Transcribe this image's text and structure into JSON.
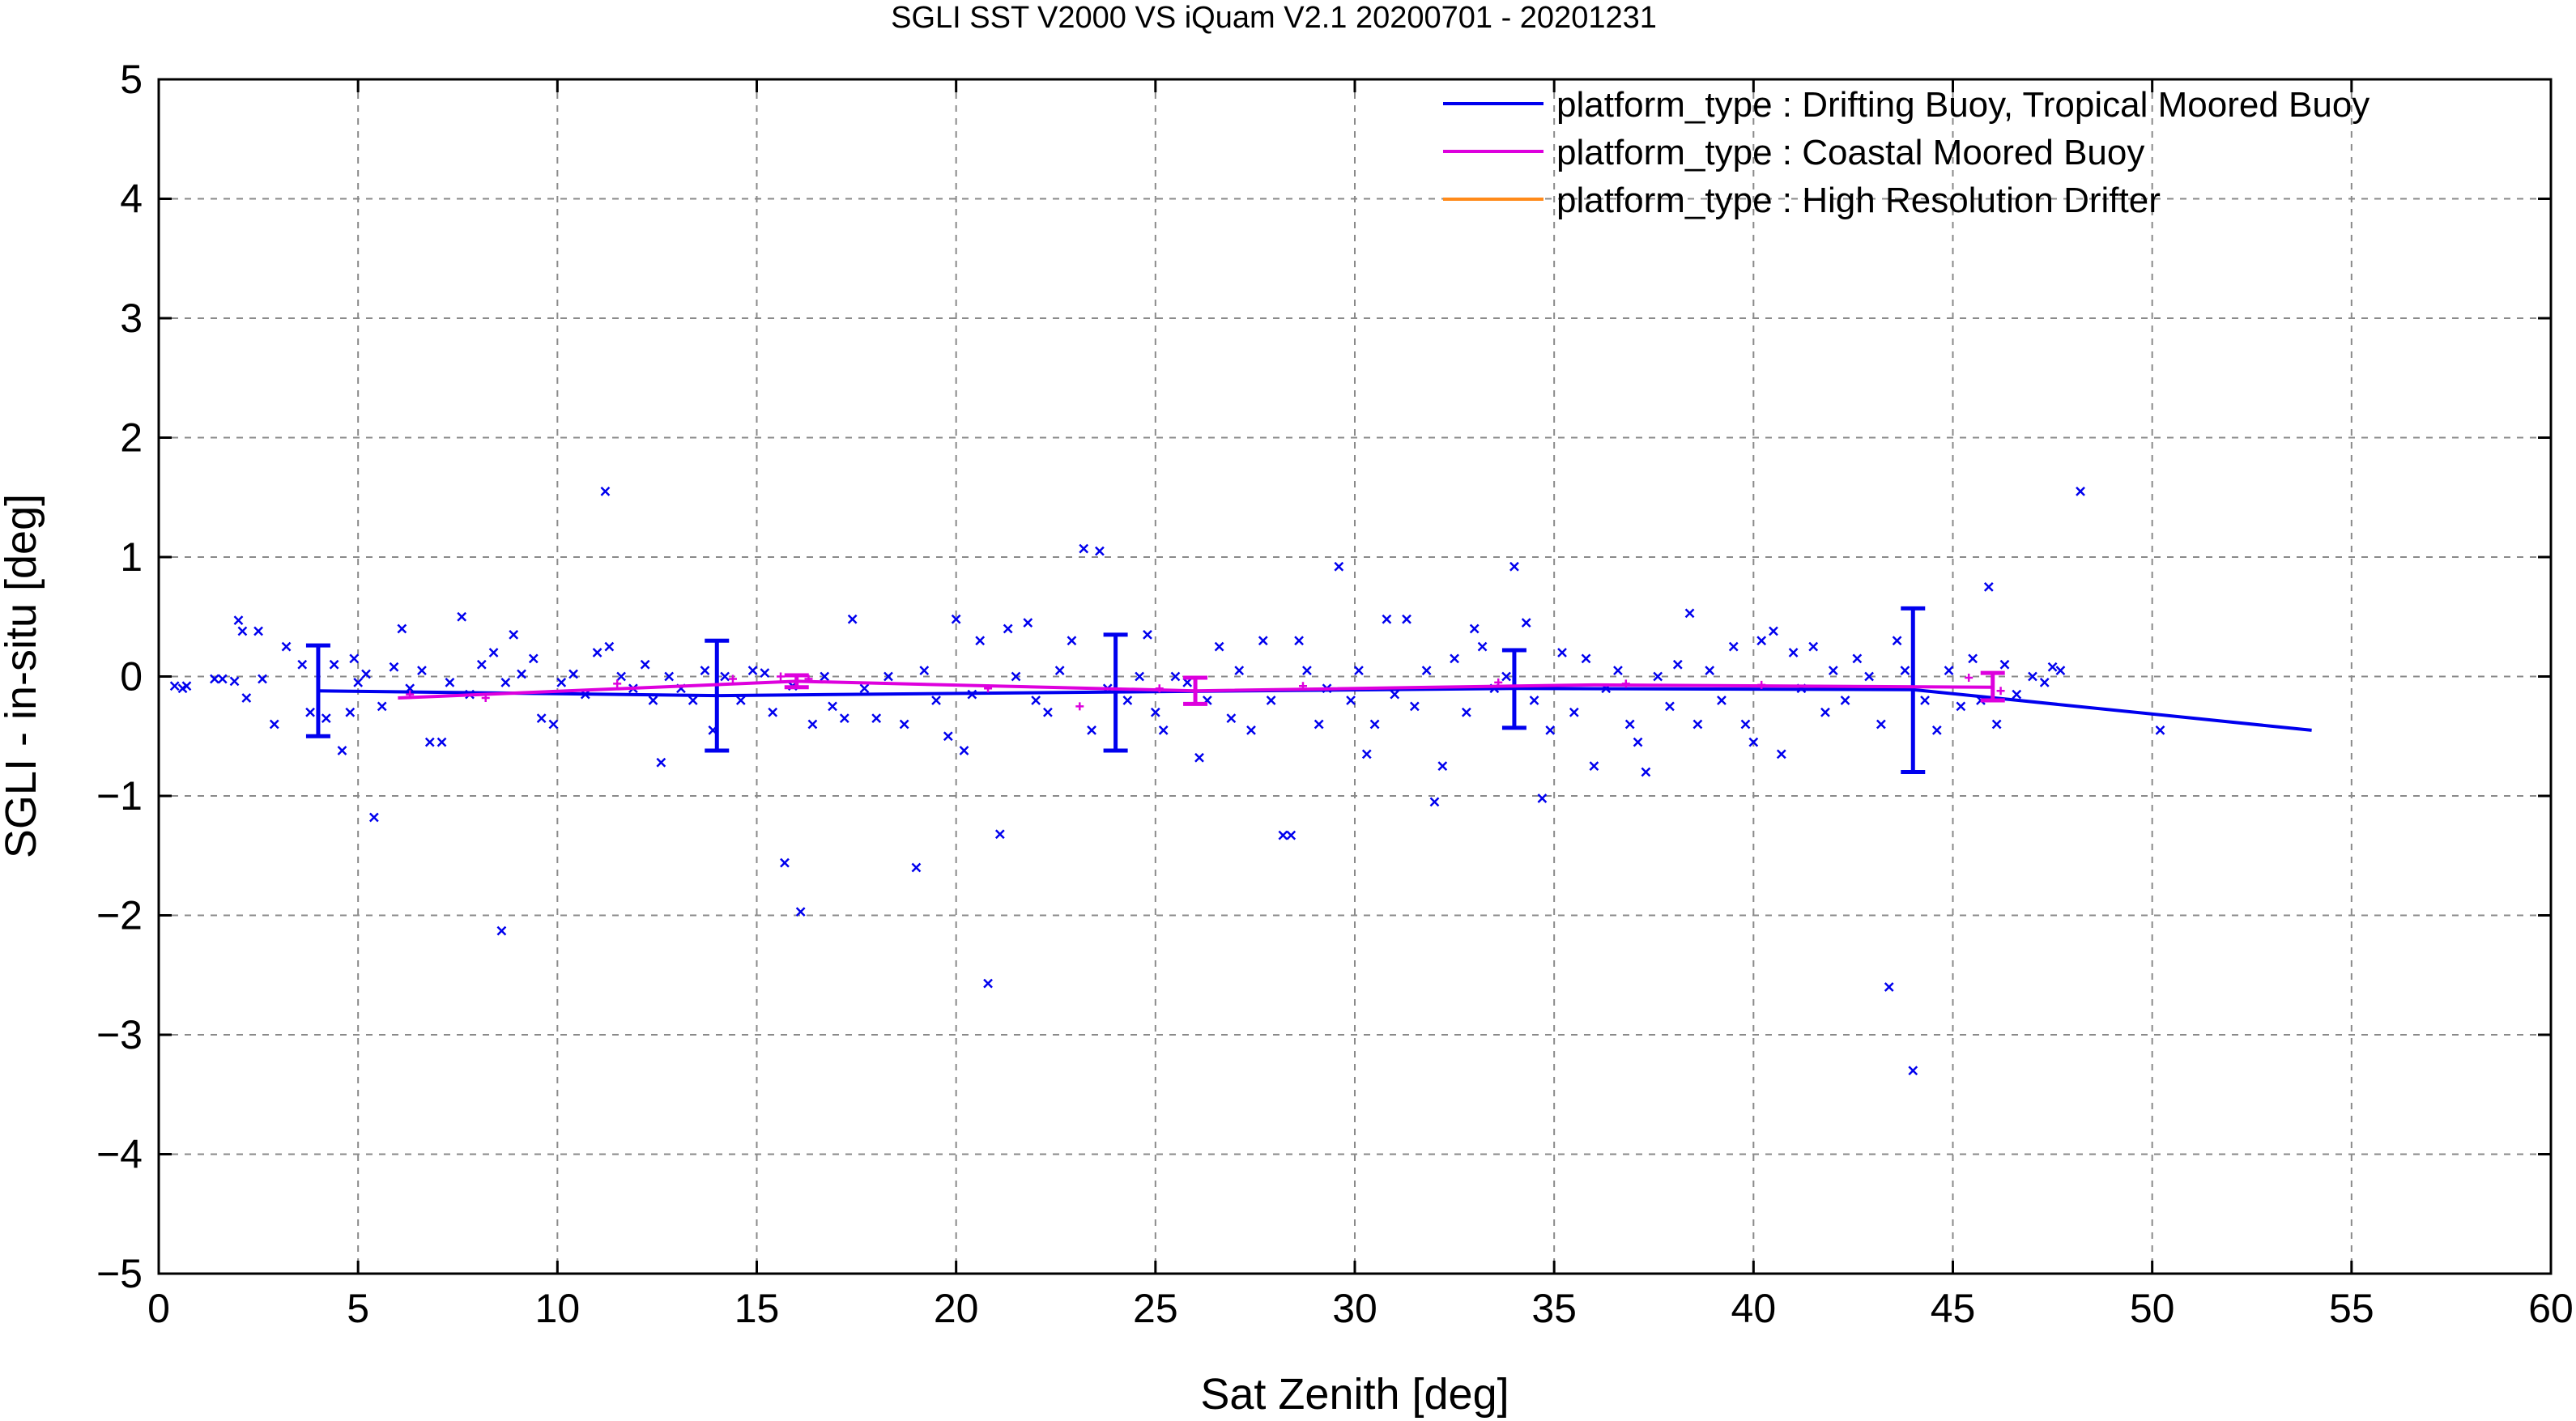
{
  "chart_data": {
    "type": "scatter",
    "title": "SGLI SST V2000 VS iQuam V2.1 20200701 - 20201231",
    "xlabel": "Sat Zenith [deg]",
    "ylabel": "SGLI - in-situ [deg]",
    "xlim": [
      0,
      60
    ],
    "ylim": [
      -5,
      5
    ],
    "xticks": [
      0,
      5,
      10,
      15,
      20,
      25,
      30,
      35,
      40,
      45,
      50,
      55,
      60
    ],
    "yticks": [
      -5,
      -4,
      -3,
      -2,
      -1,
      0,
      1,
      2,
      3,
      4,
      5
    ],
    "xtick_labels": [
      "0",
      "5",
      "10",
      "15",
      "20",
      "25",
      "30",
      "35",
      "40",
      "45",
      "50",
      "55",
      "60"
    ],
    "ytick_labels": [
      "−5",
      "−4",
      "−3",
      "−2",
      "−1",
      "0",
      "1",
      "2",
      "3",
      "4",
      "5"
    ],
    "grid": true,
    "legend_position": "top-right",
    "series": [
      {
        "name": "platform_type : Drifting Buoy, Tropical Moored Buoy",
        "color": "#0000ee",
        "line": {
          "x": [
            4,
            14,
            24,
            34,
            44,
            54
          ],
          "y": [
            -0.12,
            -0.16,
            -0.13,
            -0.1,
            -0.11,
            -0.45
          ]
        },
        "errorbars": [
          {
            "x": 4,
            "y": -0.12,
            "low": -0.5,
            "high": 0.26
          },
          {
            "x": 14,
            "y": -0.16,
            "low": -0.62,
            "high": 0.3
          },
          {
            "x": 24,
            "y": -0.13,
            "low": -0.62,
            "high": 0.35
          },
          {
            "x": 34,
            "y": -0.1,
            "low": -0.43,
            "high": 0.22
          },
          {
            "x": 44,
            "y": -0.11,
            "low": -0.8,
            "high": 0.57
          }
        ],
        "points": [
          [
            0.4,
            -0.08
          ],
          [
            0.6,
            -0.1
          ],
          [
            0.7,
            -0.08
          ],
          [
            1.4,
            -0.02
          ],
          [
            1.6,
            -0.02
          ],
          [
            1.9,
            -0.04
          ],
          [
            2.0,
            0.47
          ],
          [
            2.1,
            0.38
          ],
          [
            2.2,
            -0.18
          ],
          [
            2.5,
            0.38
          ],
          [
            2.6,
            -0.02
          ],
          [
            2.9,
            -0.4
          ],
          [
            3.2,
            0.25
          ],
          [
            3.6,
            0.1
          ],
          [
            3.8,
            -0.3
          ],
          [
            4.2,
            -0.35
          ],
          [
            4.4,
            0.1
          ],
          [
            4.6,
            -0.62
          ],
          [
            4.8,
            -0.3
          ],
          [
            4.9,
            0.15
          ],
          [
            5.0,
            -0.05
          ],
          [
            5.2,
            0.02
          ],
          [
            5.4,
            -1.18
          ],
          [
            5.6,
            -0.25
          ],
          [
            5.9,
            0.08
          ],
          [
            6.1,
            0.4
          ],
          [
            6.3,
            -0.1
          ],
          [
            6.6,
            0.05
          ],
          [
            6.8,
            -0.55
          ],
          [
            7.1,
            -0.55
          ],
          [
            7.3,
            -0.05
          ],
          [
            7.6,
            0.5
          ],
          [
            7.8,
            -0.15
          ],
          [
            8.1,
            0.1
          ],
          [
            8.4,
            0.2
          ],
          [
            8.6,
            -2.13
          ],
          [
            8.7,
            -0.05
          ],
          [
            8.9,
            0.35
          ],
          [
            9.1,
            0.02
          ],
          [
            9.4,
            0.15
          ],
          [
            9.6,
            -0.35
          ],
          [
            9.9,
            -0.4
          ],
          [
            10.1,
            -0.05
          ],
          [
            10.4,
            0.02
          ],
          [
            10.7,
            -0.15
          ],
          [
            11.0,
            0.2
          ],
          [
            11.2,
            1.55
          ],
          [
            11.3,
            0.25
          ],
          [
            11.6,
            0.0
          ],
          [
            11.9,
            -0.1
          ],
          [
            12.2,
            0.1
          ],
          [
            12.4,
            -0.2
          ],
          [
            12.6,
            -0.72
          ],
          [
            12.8,
            0.0
          ],
          [
            13.1,
            -0.1
          ],
          [
            13.4,
            -0.2
          ],
          [
            13.7,
            0.05
          ],
          [
            13.9,
            -0.45
          ],
          [
            14.2,
            0.0
          ],
          [
            14.6,
            -0.2
          ],
          [
            14.9,
            0.05
          ],
          [
            15.2,
            0.03
          ],
          [
            15.4,
            -0.3
          ],
          [
            15.7,
            -1.56
          ],
          [
            15.9,
            -0.08
          ],
          [
            16.1,
            -1.97
          ],
          [
            16.4,
            -0.4
          ],
          [
            16.7,
            0.0
          ],
          [
            16.9,
            -0.25
          ],
          [
            17.2,
            -0.35
          ],
          [
            17.4,
            0.48
          ],
          [
            17.7,
            -0.1
          ],
          [
            18.0,
            -0.35
          ],
          [
            18.3,
            0.0
          ],
          [
            18.7,
            -0.4
          ],
          [
            19.0,
            -1.6
          ],
          [
            19.2,
            0.05
          ],
          [
            19.5,
            -0.2
          ],
          [
            19.8,
            -0.5
          ],
          [
            20.0,
            0.48
          ],
          [
            20.2,
            -0.62
          ],
          [
            20.4,
            -0.15
          ],
          [
            20.6,
            0.3
          ],
          [
            20.8,
            -2.57
          ],
          [
            21.1,
            -1.32
          ],
          [
            21.3,
            0.4
          ],
          [
            21.5,
            0.0
          ],
          [
            21.8,
            0.45
          ],
          [
            22.0,
            -0.2
          ],
          [
            22.3,
            -0.3
          ],
          [
            22.6,
            0.05
          ],
          [
            22.9,
            0.3
          ],
          [
            23.2,
            1.07
          ],
          [
            23.4,
            -0.45
          ],
          [
            23.6,
            1.05
          ],
          [
            23.8,
            -0.1
          ],
          [
            24.3,
            -0.2
          ],
          [
            24.6,
            0.0
          ],
          [
            24.8,
            0.35
          ],
          [
            25.0,
            -0.3
          ],
          [
            25.2,
            -0.45
          ],
          [
            25.5,
            0.0
          ],
          [
            25.8,
            -0.05
          ],
          [
            26.1,
            -0.68
          ],
          [
            26.3,
            -0.2
          ],
          [
            26.6,
            0.25
          ],
          [
            26.9,
            -0.35
          ],
          [
            27.1,
            0.05
          ],
          [
            27.4,
            -0.45
          ],
          [
            27.7,
            0.3
          ],
          [
            27.9,
            -0.2
          ],
          [
            28.2,
            -1.33
          ],
          [
            28.4,
            -1.33
          ],
          [
            28.6,
            0.3
          ],
          [
            28.8,
            0.05
          ],
          [
            29.1,
            -0.4
          ],
          [
            29.3,
            -0.1
          ],
          [
            29.6,
            0.92
          ],
          [
            29.9,
            -0.2
          ],
          [
            30.1,
            0.05
          ],
          [
            30.3,
            -0.65
          ],
          [
            30.5,
            -0.4
          ],
          [
            30.8,
            0.48
          ],
          [
            31.0,
            -0.15
          ],
          [
            31.3,
            0.48
          ],
          [
            31.5,
            -0.25
          ],
          [
            31.8,
            0.05
          ],
          [
            32.0,
            -1.05
          ],
          [
            32.2,
            -0.75
          ],
          [
            32.5,
            0.15
          ],
          [
            32.8,
            -0.3
          ],
          [
            33.0,
            0.4
          ],
          [
            33.2,
            0.25
          ],
          [
            33.5,
            -0.1
          ],
          [
            33.8,
            0.0
          ],
          [
            34.0,
            0.92
          ],
          [
            34.3,
            0.45
          ],
          [
            34.5,
            -0.2
          ],
          [
            34.7,
            -1.02
          ],
          [
            34.9,
            -0.45
          ],
          [
            35.2,
            0.2
          ],
          [
            35.5,
            -0.3
          ],
          [
            35.8,
            0.15
          ],
          [
            36.0,
            -0.75
          ],
          [
            36.3,
            -0.1
          ],
          [
            36.6,
            0.05
          ],
          [
            36.9,
            -0.4
          ],
          [
            37.1,
            -0.55
          ],
          [
            37.3,
            -0.8
          ],
          [
            37.6,
            0.0
          ],
          [
            37.9,
            -0.25
          ],
          [
            38.1,
            0.1
          ],
          [
            38.4,
            0.53
          ],
          [
            38.6,
            -0.4
          ],
          [
            38.9,
            0.05
          ],
          [
            39.2,
            -0.2
          ],
          [
            39.5,
            0.25
          ],
          [
            39.8,
            -0.4
          ],
          [
            40.0,
            -0.55
          ],
          [
            40.2,
            0.3
          ],
          [
            40.5,
            0.38
          ],
          [
            40.7,
            -0.65
          ],
          [
            41.0,
            0.2
          ],
          [
            41.2,
            -0.1
          ],
          [
            41.5,
            0.25
          ],
          [
            41.8,
            -0.3
          ],
          [
            42.0,
            0.05
          ],
          [
            42.3,
            -0.2
          ],
          [
            42.6,
            0.15
          ],
          [
            42.9,
            0.0
          ],
          [
            43.2,
            -0.4
          ],
          [
            43.4,
            -2.6
          ],
          [
            43.6,
            0.3
          ],
          [
            43.8,
            0.05
          ],
          [
            44.0,
            -3.3
          ],
          [
            44.3,
            -0.2
          ],
          [
            44.6,
            -0.45
          ],
          [
            44.9,
            0.05
          ],
          [
            45.2,
            -0.25
          ],
          [
            45.5,
            0.15
          ],
          [
            45.7,
            -0.2
          ],
          [
            45.9,
            0.75
          ],
          [
            46.1,
            -0.4
          ],
          [
            46.3,
            0.1
          ],
          [
            46.6,
            -0.15
          ],
          [
            47.0,
            0.0
          ],
          [
            47.3,
            -0.05
          ],
          [
            47.5,
            0.08
          ],
          [
            47.7,
            0.05
          ],
          [
            48.2,
            1.55
          ],
          [
            50.2,
            -0.45
          ]
        ]
      },
      {
        "name": "platform_type : Coastal Moored Buoy",
        "color": "#dd00dd",
        "line": {
          "x": [
            6,
            16,
            26,
            36,
            46
          ],
          "y": [
            -0.18,
            -0.04,
            -0.12,
            -0.07,
            -0.09
          ]
        },
        "errorbars": [
          {
            "x": 16,
            "y": -0.04,
            "low": -0.09,
            "high": 0.01
          },
          {
            "x": 26,
            "y": -0.12,
            "low": -0.23,
            "high": -0.01
          },
          {
            "x": 46,
            "y": -0.09,
            "low": -0.2,
            "high": 0.03
          }
        ],
        "points": [
          [
            6.3,
            -0.15
          ],
          [
            8.2,
            -0.18
          ],
          [
            11.5,
            -0.06
          ],
          [
            14.4,
            -0.02
          ],
          [
            15.6,
            0.0
          ],
          [
            16.3,
            -0.02
          ],
          [
            20.8,
            -0.1
          ],
          [
            23.1,
            -0.25
          ],
          [
            25.1,
            -0.1
          ],
          [
            28.7,
            -0.08
          ],
          [
            33.6,
            -0.05
          ],
          [
            36.8,
            -0.06
          ],
          [
            40.2,
            -0.07
          ],
          [
            45.4,
            -0.01
          ],
          [
            46.2,
            -0.12
          ]
        ]
      },
      {
        "name": "platform_type : High Resolution Drifter",
        "color": "#ff8a1a",
        "line": {
          "x": [],
          "y": []
        },
        "errorbars": [],
        "points": []
      }
    ]
  }
}
